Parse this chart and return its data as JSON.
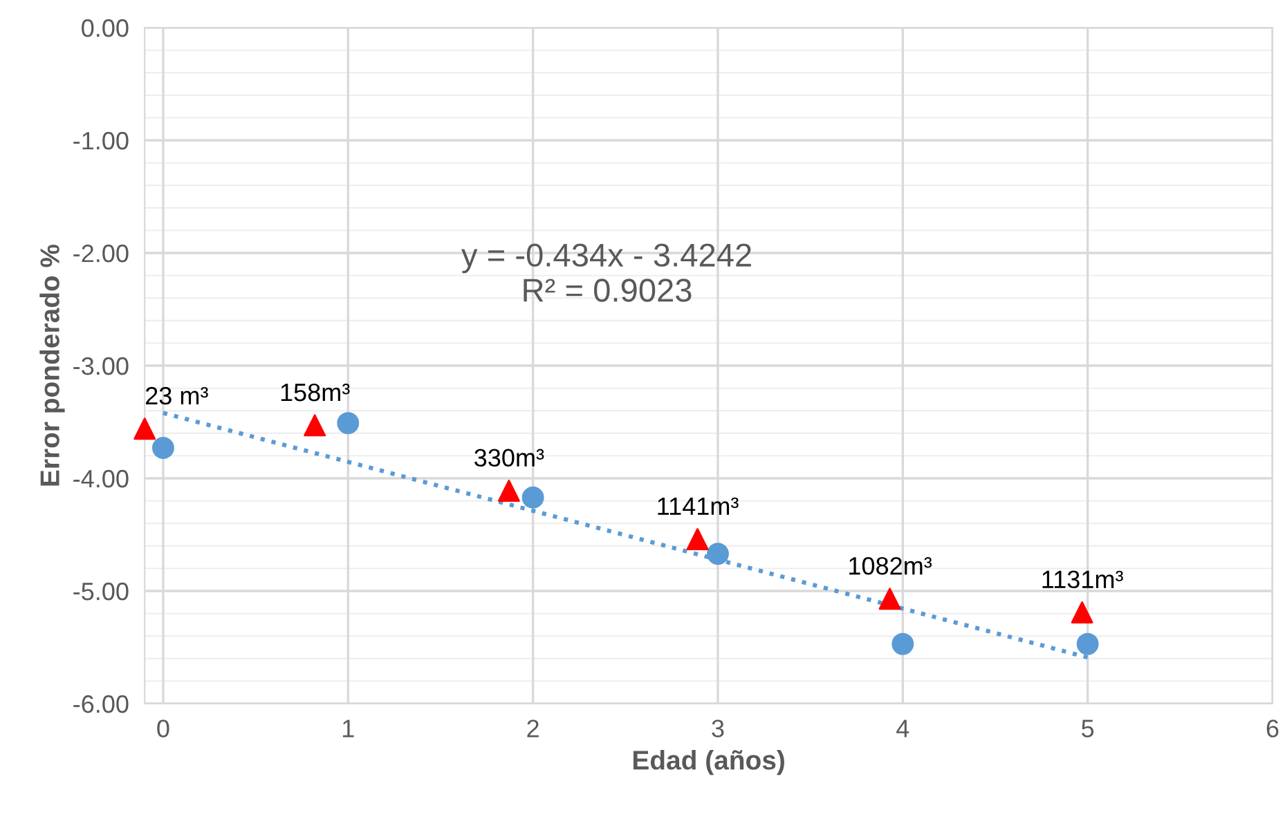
{
  "chart_data": {
    "type": "scatter",
    "xlabel": "Edad (años)",
    "ylabel": "Error ponderado %",
    "xlim": [
      -0.1,
      6
    ],
    "xticks": [
      0,
      1,
      2,
      3,
      4,
      5,
      6
    ],
    "ylim": [
      -6,
      0
    ],
    "yticks": [
      {
        "value": -6,
        "label": "-6.00"
      },
      {
        "value": -5,
        "label": "-5.00"
      },
      {
        "value": -4,
        "label": "-4.00"
      },
      {
        "value": -3,
        "label": "-3.00"
      },
      {
        "value": -2,
        "label": "-2.00"
      },
      {
        "value": -1,
        "label": "-1.00"
      },
      {
        "value": 0,
        "label": "0.00"
      }
    ],
    "grid": true,
    "legend": false,
    "series": [
      {
        "marker": "circle",
        "color": "#5b9bd5",
        "x": [
          0,
          1,
          2,
          3,
          4,
          5
        ],
        "values": [
          -3.73,
          -3.51,
          -4.17,
          -4.67,
          -5.47,
          -5.47
        ]
      },
      {
        "marker": "triangle",
        "color": "#ff0000",
        "x": [
          -0.1,
          0.82,
          1.87,
          2.89,
          3.93,
          4.97
        ],
        "values": [
          -3.56,
          -3.53,
          -4.11,
          -4.54,
          -5.07,
          -5.19
        ]
      },
      {
        "type": "line",
        "line_style": "dotted",
        "color": "#5b9bd5",
        "x": [
          0,
          5
        ],
        "values": [
          -3.42,
          -5.59
        ]
      }
    ],
    "annotations": [
      {
        "text": "23 m³",
        "x": -0.1,
        "y": -3.56
      },
      {
        "text": "158m³",
        "x": 0.82,
        "y": -3.53
      },
      {
        "text": "330m³",
        "x": 1.87,
        "y": -4.11
      },
      {
        "text": "1141m³",
        "x": 2.89,
        "y": -4.54
      },
      {
        "text": "1082m³",
        "x": 3.93,
        "y": -5.07
      },
      {
        "text": "1131m³",
        "x": 4.97,
        "y": -5.19
      },
      "y = -0.434x - 3.4242\nR² = 0.9023"
    ]
  }
}
